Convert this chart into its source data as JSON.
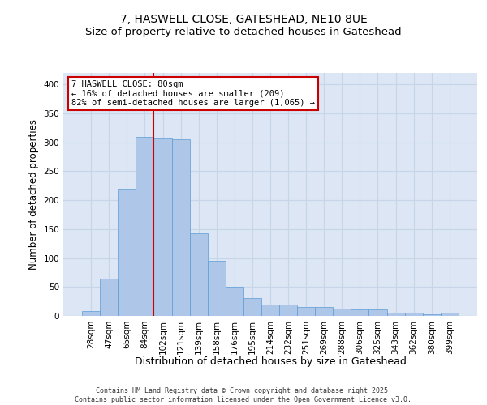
{
  "title1": "7, HASWELL CLOSE, GATESHEAD, NE10 8UE",
  "title2": "Size of property relative to detached houses in Gateshead",
  "xlabel": "Distribution of detached houses by size in Gateshead",
  "ylabel": "Number of detached properties",
  "categories": [
    "28sqm",
    "47sqm",
    "65sqm",
    "84sqm",
    "102sqm",
    "121sqm",
    "139sqm",
    "158sqm",
    "176sqm",
    "195sqm",
    "214sqm",
    "232sqm",
    "251sqm",
    "269sqm",
    "288sqm",
    "306sqm",
    "325sqm",
    "343sqm",
    "362sqm",
    "380sqm",
    "399sqm"
  ],
  "values": [
    8,
    65,
    220,
    310,
    308,
    305,
    143,
    95,
    50,
    31,
    20,
    20,
    15,
    15,
    12,
    11,
    11,
    5,
    5,
    3,
    5
  ],
  "bar_color": "#aec6e8",
  "bar_edge_color": "#5b9bd5",
  "grid_color": "#c8d4e8",
  "background_color": "#dce6f5",
  "annotation_text": "7 HASWELL CLOSE: 80sqm\n← 16% of detached houses are smaller (209)\n82% of semi-detached houses are larger (1,065) →",
  "annotation_box_color": "#ffffff",
  "annotation_box_edge": "#cc0000",
  "red_line_x": 3.5,
  "footnote": "Contains HM Land Registry data © Crown copyright and database right 2025.\nContains public sector information licensed under the Open Government Licence v3.0.",
  "ylim": [
    0,
    420
  ],
  "title_fontsize": 10,
  "subtitle_fontsize": 9.5,
  "tick_fontsize": 7.5,
  "xlabel_fontsize": 9,
  "ylabel_fontsize": 8.5
}
